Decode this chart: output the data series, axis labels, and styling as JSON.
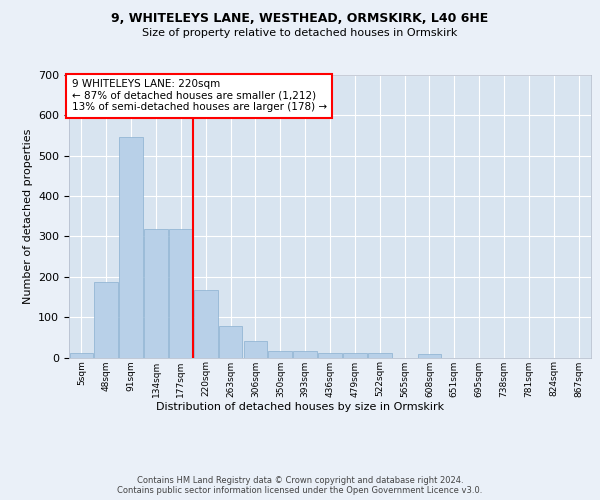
{
  "title1": "9, WHITELEYS LANE, WESTHEAD, ORMSKIRK, L40 6HE",
  "title2": "Size of property relative to detached houses in Ormskirk",
  "xlabel": "Distribution of detached houses by size in Ormskirk",
  "ylabel": "Number of detached properties",
  "bar_labels": [
    "5sqm",
    "48sqm",
    "91sqm",
    "134sqm",
    "177sqm",
    "220sqm",
    "263sqm",
    "306sqm",
    "350sqm",
    "393sqm",
    "436sqm",
    "479sqm",
    "522sqm",
    "565sqm",
    "608sqm",
    "651sqm",
    "695sqm",
    "738sqm",
    "781sqm",
    "824sqm",
    "867sqm"
  ],
  "bar_values": [
    10,
    187,
    547,
    318,
    318,
    168,
    77,
    40,
    17,
    17,
    12,
    12,
    12,
    0,
    8,
    0,
    0,
    0,
    0,
    0,
    0
  ],
  "bar_color": "#b8d0e8",
  "bar_edge_color": "#8ab0d0",
  "vline_color": "red",
  "vline_index": 5,
  "annotation_text": "9 WHITELEYS LANE: 220sqm\n← 87% of detached houses are smaller (1,212)\n13% of semi-detached houses are larger (178) →",
  "annotation_box_color": "white",
  "annotation_box_edge_color": "red",
  "ylim": [
    0,
    700
  ],
  "yticks": [
    0,
    100,
    200,
    300,
    400,
    500,
    600,
    700
  ],
  "footer_text": "Contains HM Land Registry data © Crown copyright and database right 2024.\nContains public sector information licensed under the Open Government Licence v3.0.",
  "background_color": "#eaf0f8",
  "plot_background_color": "#d8e4f0"
}
